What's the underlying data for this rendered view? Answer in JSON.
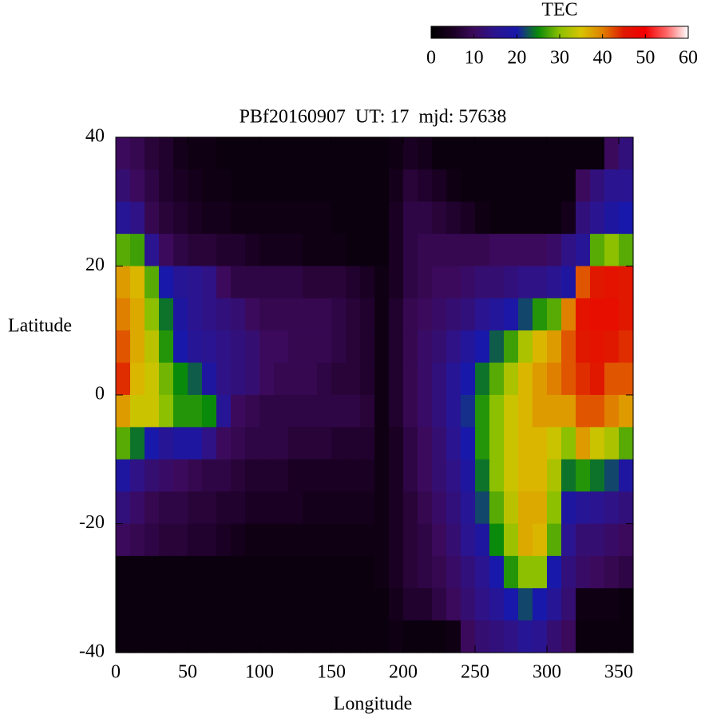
{
  "chart_data": {
    "type": "heatmap",
    "title": "PBf20160907  UT: 17  mjd: 57638",
    "x_label": "Longitude",
    "y_label": "Latitude",
    "colorbar_label": "TEC",
    "xlim": [
      0,
      360
    ],
    "xticks": [
      0,
      50,
      100,
      150,
      200,
      250,
      300,
      350
    ],
    "ylim": [
      -40,
      40
    ],
    "yticks": [
      -40,
      -20,
      0,
      20,
      40
    ],
    "zlim": [
      0,
      60
    ],
    "zticks": [
      0,
      10,
      20,
      30,
      40,
      50,
      60
    ],
    "colors": [
      "#000000",
      "#1a0022",
      "#3c0a5c",
      "#2a1490",
      "#1818aa",
      "#0a8a0a",
      "#8cc000",
      "#d8c400",
      "#e08000",
      "#e01800",
      "#f20000",
      "#ff6868",
      "#ffffff"
    ],
    "x": [
      5,
      15,
      25,
      35,
      45,
      55,
      65,
      75,
      85,
      95,
      105,
      115,
      125,
      135,
      145,
      155,
      165,
      175,
      185,
      195,
      205,
      215,
      225,
      235,
      245,
      255,
      265,
      275,
      285,
      295,
      305,
      315,
      325,
      335,
      345,
      355
    ],
    "y": [
      37.5,
      32.5,
      27.5,
      22.5,
      17.5,
      12.5,
      7.5,
      2.5,
      -2.5,
      -7.5,
      -12.5,
      -17.5,
      -22.5,
      -27.5,
      -32.5,
      -37.5
    ],
    "z": [
      [
        10,
        9,
        7,
        6,
        4,
        3,
        3,
        2,
        2,
        2,
        2,
        2,
        2,
        2,
        2,
        2,
        2,
        2,
        2,
        3,
        5,
        4,
        2,
        2,
        2,
        2,
        2,
        2,
        2,
        2,
        2,
        2,
        2,
        2,
        10,
        13
      ],
      [
        12,
        10,
        8,
        6,
        5,
        4,
        3,
        3,
        2,
        2,
        2,
        2,
        2,
        2,
        2,
        2,
        2,
        2,
        2,
        4,
        7,
        6,
        5,
        3,
        2,
        2,
        2,
        2,
        2,
        2,
        2,
        2,
        10,
        13,
        15,
        15
      ],
      [
        16,
        14,
        9,
        7,
        6,
        5,
        4,
        4,
        3,
        3,
        3,
        3,
        3,
        3,
        3,
        2,
        2,
        2,
        2,
        5,
        8,
        8,
        7,
        6,
        5,
        3,
        2,
        2,
        2,
        2,
        2,
        4,
        13,
        15,
        18,
        20
      ],
      [
        28,
        27,
        15,
        10,
        8,
        7,
        7,
        6,
        6,
        5,
        4,
        4,
        4,
        3,
        3,
        3,
        2,
        2,
        2,
        5,
        8,
        9,
        9,
        9,
        9,
        9,
        10,
        10,
        10,
        10,
        11,
        14,
        16,
        28,
        30,
        28
      ],
      [
        38,
        36,
        28,
        20,
        16,
        15,
        14,
        10,
        8,
        8,
        8,
        8,
        8,
        7,
        7,
        7,
        6,
        5,
        3,
        5,
        8,
        9,
        10,
        10,
        11,
        12,
        12,
        13,
        14,
        14,
        15,
        18,
        42,
        45,
        46,
        45
      ],
      [
        40,
        37,
        30,
        24,
        18,
        15,
        14,
        13,
        12,
        10,
        9,
        9,
        9,
        9,
        9,
        8,
        7,
        6,
        3,
        6,
        9,
        10,
        11,
        12,
        13,
        15,
        17,
        19,
        22,
        26,
        28,
        40,
        46,
        47,
        47,
        45
      ],
      [
        42,
        37,
        33,
        26,
        20,
        16,
        15,
        14,
        13,
        12,
        10,
        10,
        9,
        9,
        9,
        8,
        7,
        6,
        3,
        6,
        9,
        11,
        12,
        14,
        17,
        20,
        23,
        27,
        32,
        36,
        38,
        42,
        45,
        46,
        45,
        44
      ],
      [
        44,
        36,
        34,
        29,
        25,
        23,
        18,
        14,
        13,
        12,
        10,
        9,
        9,
        9,
        8,
        7,
        7,
        6,
        3,
        6,
        9,
        11,
        13,
        16,
        20,
        24,
        28,
        32,
        36,
        38,
        40,
        42,
        44,
        45,
        42,
        42
      ],
      [
        38,
        34,
        34,
        30,
        26,
        26,
        25,
        16,
        10,
        9,
        8,
        8,
        8,
        8,
        8,
        8,
        8,
        7,
        3,
        6,
        9,
        11,
        13,
        16,
        21,
        26,
        30,
        34,
        36,
        38,
        38,
        38,
        42,
        42,
        40,
        38
      ],
      [
        28,
        24,
        20,
        16,
        18,
        18,
        14,
        10,
        9,
        8,
        8,
        8,
        7,
        7,
        7,
        6,
        6,
        6,
        3,
        5,
        8,
        10,
        12,
        15,
        20,
        26,
        30,
        34,
        36,
        36,
        34,
        30,
        38,
        34,
        32,
        28
      ],
      [
        18,
        14,
        12,
        11,
        10,
        9,
        8,
        8,
        7,
        6,
        6,
        6,
        5,
        5,
        5,
        5,
        5,
        5,
        3,
        5,
        8,
        10,
        12,
        14,
        18,
        24,
        30,
        34,
        36,
        36,
        32,
        24,
        26,
        24,
        22,
        18
      ],
      [
        13,
        11,
        9,
        8,
        8,
        7,
        7,
        6,
        6,
        5,
        5,
        5,
        5,
        4,
        4,
        4,
        4,
        4,
        3,
        5,
        7,
        9,
        11,
        13,
        16,
        22,
        28,
        33,
        37,
        37,
        30,
        18,
        16,
        15,
        14,
        13
      ],
      [
        10,
        9,
        8,
        7,
        7,
        6,
        6,
        5,
        4,
        3,
        3,
        3,
        3,
        3,
        3,
        3,
        3,
        3,
        3,
        5,
        7,
        8,
        10,
        12,
        15,
        18,
        25,
        31,
        37,
        36,
        28,
        15,
        12,
        12,
        11,
        10
      ],
      [
        2,
        2,
        2,
        2,
        2,
        2,
        2,
        2,
        2,
        2,
        2,
        2,
        2,
        2,
        2,
        2,
        2,
        2,
        3,
        5,
        7,
        8,
        9,
        11,
        13,
        15,
        20,
        26,
        30,
        30,
        20,
        13,
        11,
        10,
        9,
        8
      ],
      [
        2,
        2,
        2,
        2,
        2,
        2,
        2,
        2,
        2,
        2,
        2,
        2,
        2,
        2,
        2,
        2,
        2,
        2,
        2,
        4,
        6,
        6,
        8,
        10,
        12,
        14,
        16,
        20,
        22,
        20,
        16,
        12,
        3,
        3,
        3,
        2
      ],
      [
        2,
        2,
        2,
        2,
        2,
        2,
        2,
        2,
        2,
        2,
        2,
        2,
        2,
        2,
        2,
        2,
        2,
        2,
        2,
        3,
        2,
        2,
        2,
        3,
        10,
        12,
        13,
        14,
        16,
        15,
        12,
        10,
        2,
        2,
        2,
        2
      ]
    ]
  }
}
